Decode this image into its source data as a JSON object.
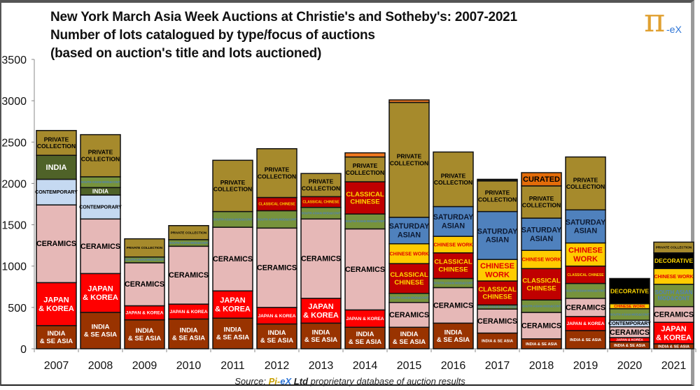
{
  "title_lines": [
    "New York March Asia Week Auctions at Christie's and Sotheby's: 2007-2021",
    "Number of lots catalogued by type/focus of auctions",
    "(based on auction's title and lots auctioned)"
  ],
  "logo": {
    "pi": "π",
    "suffix": "-eX"
  },
  "source": {
    "prefix": "Source:",
    "pi": "Pi-",
    "ex": "eX",
    "ltd": "Ltd",
    "rest": "proprietary database of auction results"
  },
  "chart_data": {
    "type": "bar",
    "stacked": true,
    "title": "New York March Asia Week Auctions at Christie's and Sotheby's: 2007-2021",
    "xlabel": "",
    "ylabel": "Number of lots",
    "ylim": [
      0,
      3500
    ],
    "yticks": [
      0,
      500,
      1000,
      1500,
      2000,
      2500,
      3000,
      3500
    ],
    "grid": false,
    "categories_style": {
      "IS": {
        "label": "INDIA & SE ASIA",
        "color": "#993300",
        "text": "#ffffff"
      },
      "JK": {
        "label": "JAPAN & KOREA",
        "color": "#ff0000",
        "text": "#ffffff"
      },
      "CER": {
        "label": "CERAMICS",
        "color": "#e6b8b7",
        "text": "#000000"
      },
      "CON": {
        "label": "CONTEMPORARY",
        "color": "#c5d9f1",
        "text": "#000000"
      },
      "SA": {
        "label": "SOUTH ASIAN MOD&CONT",
        "color": "#77933c",
        "text": "#4f81bd"
      },
      "IND": {
        "label": "INDIA",
        "color": "#4f6228",
        "text": "#ffffff"
      },
      "CC": {
        "label": "CLASSICAL CHINESE",
        "color": "#c00000",
        "text": "#ffd800"
      },
      "CW": {
        "label": "CHINESE WORK",
        "color": "#ffcc00",
        "text": "#e00000"
      },
      "SAT": {
        "label": "SATURDAY ASIAN",
        "color": "#4f81bd",
        "text": "#0d1a33"
      },
      "DEC": {
        "label": "DECORATIVE",
        "color": "#000000",
        "text": "#ffd800"
      },
      "PC": {
        "label": "PRIVATE COLLECTION",
        "color": "#a68a2c",
        "text": "#000000"
      },
      "CUR": {
        "label": "CURATED",
        "color": "#e36c09",
        "text": "#000000"
      },
      "OTH": {
        "label": "",
        "color": "#f07820",
        "text": "#000000"
      },
      "OTHB": {
        "label": "",
        "color": "#111111",
        "text": "#ffffff"
      }
    },
    "bars": [
      {
        "year": "2007",
        "segments": [
          [
            "IS",
            280
          ],
          [
            "JK",
            520
          ],
          [
            "CER",
            940
          ],
          [
            "CON",
            310
          ],
          [
            "IND",
            290
          ],
          [
            "PC",
            300
          ]
        ]
      },
      {
        "year": "2008",
        "segments": [
          [
            "IS",
            440
          ],
          [
            "JK",
            470
          ],
          [
            "CER",
            660
          ],
          [
            "CON",
            290
          ],
          [
            "IND",
            90
          ],
          [
            "SA",
            130
          ],
          [
            "PC",
            510
          ]
        ]
      },
      {
        "year": "2009",
        "segments": [
          [
            "IS",
            350
          ],
          [
            "JK",
            170
          ],
          [
            "CER",
            520
          ],
          [
            "SA",
            70
          ],
          [
            "PC",
            220
          ]
        ]
      },
      {
        "year": "2010",
        "segments": [
          [
            "IS",
            360
          ],
          [
            "JK",
            180
          ],
          [
            "CER",
            700
          ],
          [
            "SA",
            80
          ],
          [
            "PC",
            170
          ]
        ]
      },
      {
        "year": "2011",
        "segments": [
          [
            "IS",
            370
          ],
          [
            "JK",
            330
          ],
          [
            "CER",
            770
          ],
          [
            "SA",
            190
          ],
          [
            "PC",
            620
          ]
        ]
      },
      {
        "year": "2012",
        "segments": [
          [
            "IS",
            300
          ],
          [
            "JK",
            200
          ],
          [
            "CER",
            960
          ],
          [
            "SA",
            210
          ],
          [
            "CC",
            160
          ],
          [
            "PC",
            590
          ]
        ]
      },
      {
        "year": "2013",
        "segments": [
          [
            "IS",
            310
          ],
          [
            "JK",
            300
          ],
          [
            "CER",
            960
          ],
          [
            "SA",
            140
          ],
          [
            "CC",
            130
          ],
          [
            "PC",
            280
          ]
        ]
      },
      {
        "year": "2014",
        "segments": [
          [
            "IS",
            260
          ],
          [
            "JK",
            210
          ],
          [
            "CER",
            980
          ],
          [
            "SA",
            180
          ],
          [
            "CC",
            390
          ],
          [
            "PC",
            300
          ],
          [
            "OTH",
            50
          ]
        ]
      },
      {
        "year": "2015",
        "segments": [
          [
            "IS",
            260
          ],
          [
            "CER",
            300
          ],
          [
            "SA",
            110
          ],
          [
            "CC",
            360
          ],
          [
            "CW",
            240
          ],
          [
            "SAT",
            320
          ],
          [
            "PC",
            1390
          ],
          [
            "OTH",
            30
          ]
        ]
      },
      {
        "year": "2016",
        "segments": [
          [
            "IS",
            310
          ],
          [
            "CER",
            430
          ],
          [
            "SA",
            110
          ],
          [
            "CC",
            310
          ],
          [
            "CW",
            200
          ],
          [
            "SAT",
            360
          ],
          [
            "PC",
            660
          ]
        ]
      },
      {
        "year": "2017",
        "segments": [
          [
            "IS",
            190
          ],
          [
            "CER",
            290
          ],
          [
            "SA",
            50
          ],
          [
            "CC",
            290
          ],
          [
            "CW",
            260
          ],
          [
            "SAT",
            580
          ],
          [
            "PC",
            370
          ],
          [
            "OTHB",
            20
          ]
        ]
      },
      {
        "year": "2018",
        "segments": [
          [
            "IS",
            120
          ],
          [
            "CER",
            320
          ],
          [
            "SA",
            150
          ],
          [
            "CC",
            380
          ],
          [
            "CW",
            220
          ],
          [
            "SAT",
            390
          ],
          [
            "PC",
            390
          ],
          [
            "CUR",
            160
          ]
        ]
      },
      {
        "year": "2019",
        "segments": [
          [
            "IS",
            220
          ],
          [
            "JK",
            170
          ],
          [
            "CER",
            220
          ],
          [
            "SA",
            180
          ],
          [
            "CC",
            210
          ],
          [
            "CW",
            280
          ],
          [
            "SAT",
            400
          ],
          [
            "PC",
            640
          ]
        ]
      },
      {
        "year": "2020",
        "segments": [
          [
            "IS",
            85
          ],
          [
            "JK",
            50
          ],
          [
            "CER",
            130
          ],
          [
            "CON",
            80
          ],
          [
            "SA",
            140
          ],
          [
            "CW",
            60
          ],
          [
            "DEC",
            305
          ]
        ]
      },
      {
        "year": "2021",
        "segments": [
          [
            "IS",
            60
          ],
          [
            "JK",
            260
          ],
          [
            "CER",
            190
          ],
          [
            "SA",
            270
          ],
          [
            "CW",
            190
          ],
          [
            "DEC",
            190
          ],
          [
            "PC",
            130
          ]
        ]
      }
    ]
  }
}
